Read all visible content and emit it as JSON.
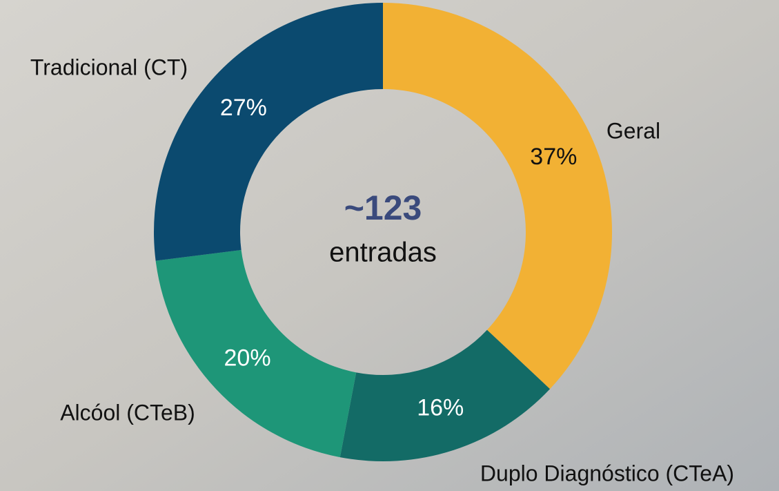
{
  "chart_data": {
    "type": "donut",
    "categories": [
      "Geral",
      "Duplo Diagnóstico (CTeA)",
      "Alcóol (CTeB)",
      "Tradicional (CT)"
    ],
    "values": [
      37,
      16,
      20,
      27
    ],
    "value_labels": [
      "37%",
      "16%",
      "20%",
      "27%"
    ],
    "colors": [
      "#f2b134",
      "#136b66",
      "#1e9678",
      "#0b4a6f"
    ],
    "center_value": "~123",
    "center_label": "entradas"
  }
}
